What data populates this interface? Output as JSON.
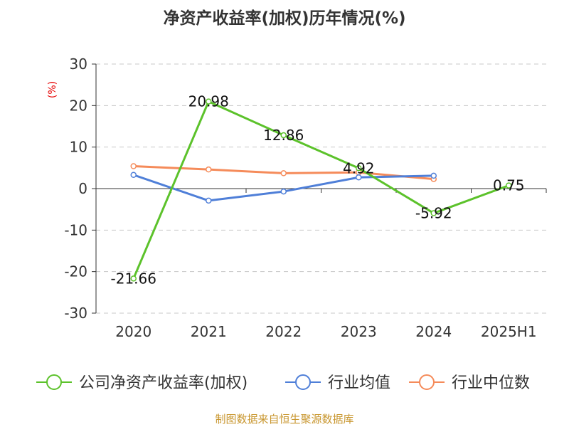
{
  "chart_data": {
    "type": "line",
    "title": "净资产收益率(加权)历年情况(%)",
    "ylabel": "(%)",
    "ylim": [
      -30,
      30
    ],
    "yticks": [
      -30,
      -20,
      -10,
      0,
      10,
      20,
      30
    ],
    "grid": true,
    "legend_position": "bottom",
    "categories": [
      "2020",
      "2021",
      "2022",
      "2023",
      "2024",
      "2025H1"
    ],
    "series": [
      {
        "name": "公司净资产收益率(加权)",
        "color": "#5cc22b",
        "values": [
          -21.66,
          20.98,
          12.86,
          4.92,
          -5.92,
          0.75
        ],
        "labels": [
          "-21.66",
          "20.98",
          "12.86",
          "4.92",
          "-5.92",
          "0.75"
        ]
      },
      {
        "name": "行业均值",
        "color": "#4f7fd8",
        "values": [
          3.3,
          -2.9,
          -0.7,
          2.7,
          3.1,
          null
        ]
      },
      {
        "name": "行业中位数",
        "color": "#f58b5a",
        "values": [
          5.4,
          4.6,
          3.7,
          3.9,
          2.3,
          null
        ]
      }
    ],
    "source": "制图数据来自恒生聚源数据库"
  }
}
